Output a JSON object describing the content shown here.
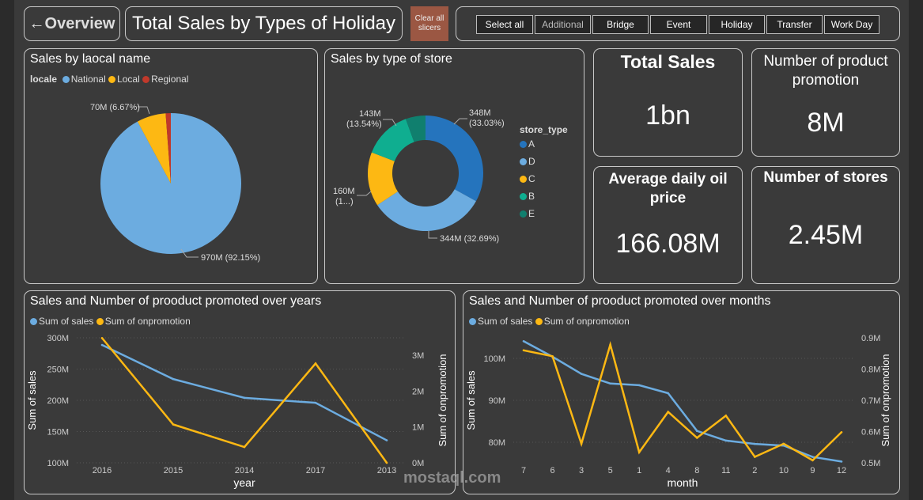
{
  "header": {
    "back_label": "←Overview",
    "title": "Total Sales by Types of Holiday",
    "clear_label": "Clear all slicers",
    "slicers": [
      "Select all",
      "Additional",
      "Bridge",
      "Event",
      "Holiday",
      "Transfer",
      "Work Day"
    ]
  },
  "colors": {
    "clear_button": "#9b5743",
    "blue": "#6cace0",
    "yellow": "#fdb813",
    "red": "#c0392b",
    "dark_blue": "#2574bd",
    "teal": "#0fae90",
    "dark_teal": "#107f6e"
  },
  "pie": {
    "title": "Sales by laocal name",
    "legend_title": "locale",
    "slices": [
      {
        "name": "National",
        "pct": 92.15,
        "label": "970M (92.15%)",
        "color": "#6cace0"
      },
      {
        "name": "Local",
        "pct": 6.67,
        "label": "70M (6.67%)",
        "color": "#fdb813"
      },
      {
        "name": "Regional",
        "pct": 1.18,
        "label": "",
        "color": "#c0392b"
      }
    ]
  },
  "donut": {
    "title": "Sales by type of store",
    "legend_title": "store_type",
    "slices": [
      {
        "name": "A",
        "pct": 33.03,
        "label1": "348M",
        "label2": "(33.03%)",
        "color": "#2574bd"
      },
      {
        "name": "D",
        "pct": 32.69,
        "label1": "344M (32.69%)",
        "label2": "",
        "color": "#6cace0"
      },
      {
        "name": "C",
        "pct": 15.17,
        "label1": "160M",
        "label2": "(1...)",
        "color": "#fdb813"
      },
      {
        "name": "B",
        "pct": 13.54,
        "label1": "143M",
        "label2": "(13.54%)",
        "color": "#0fae90"
      },
      {
        "name": "E",
        "pct": 5.57,
        "label1": "",
        "label2": "",
        "color": "#107f6e"
      }
    ]
  },
  "kpis": {
    "total_sales": {
      "title": "Total Sales",
      "value": "1bn"
    },
    "promotion": {
      "title": "Number of product promotion",
      "value": "8M"
    },
    "oil": {
      "title": "Average daily oil price",
      "value": "166.08M"
    },
    "stores": {
      "title": "Number of stores",
      "value": "2.45M"
    }
  },
  "chart_data": [
    {
      "type": "line",
      "title": "Sales and Number of prooduct promoted over years",
      "xlabel": "year",
      "ylabel": "Sum of sales",
      "y2label": "Sum of onpromotion",
      "categories": [
        "2016",
        "2015",
        "2014",
        "2017",
        "2013"
      ],
      "yticks": [
        "300M",
        "250M",
        "200M",
        "150M",
        "100M"
      ],
      "y2ticks": [
        "3M",
        "2M",
        "1M",
        "0M"
      ],
      "ylim": [
        100,
        300
      ],
      "y2lim": [
        0,
        3
      ],
      "series": [
        {
          "name": "Sum of sales",
          "axis": "left",
          "unit": "M",
          "values": [
            288.6,
            234,
            204,
            196,
            136
          ],
          "color": "#6cace0"
        },
        {
          "name": "Sum of onpromotion",
          "axis": "right",
          "unit": "M",
          "values": [
            3.48,
            1.07,
            0.44,
            2.77,
            0
          ],
          "color": "#fdb813"
        }
      ]
    },
    {
      "type": "line",
      "title": "Sales and Number of prooduct promoted over months",
      "xlabel": "month",
      "ylabel": "Sum of sales",
      "y2label": "Sum of onpromotion",
      "categories": [
        "7",
        "6",
        "3",
        "5",
        "1",
        "4",
        "8",
        "11",
        "2",
        "10",
        "9",
        "12"
      ],
      "yticks": [
        "100M",
        "90M",
        "80M"
      ],
      "y2ticks": [
        "0.9M",
        "0.8M",
        "0.7M",
        "0.6M",
        "0.5M"
      ],
      "ylim": [
        75,
        105
      ],
      "y2lim": [
        0.5,
        0.9
      ],
      "series": [
        {
          "name": "Sum of sales",
          "axis": "left",
          "unit": "M",
          "values": [
            104.1,
            100.4,
            96.3,
            94,
            93.6,
            91.7,
            82.7,
            80.4,
            79.6,
            79.2,
            76.5,
            75.4
          ],
          "color": "#6cace0"
        },
        {
          "name": "Sum of onpromotion",
          "axis": "right",
          "unit": "M",
          "values": [
            0.86,
            0.841,
            0.561,
            0.878,
            0.534,
            0.663,
            0.58,
            0.651,
            0.519,
            0.561,
            0.508,
            0.598
          ],
          "color": "#fdb813"
        }
      ]
    }
  ],
  "watermark": "mostaql.com"
}
